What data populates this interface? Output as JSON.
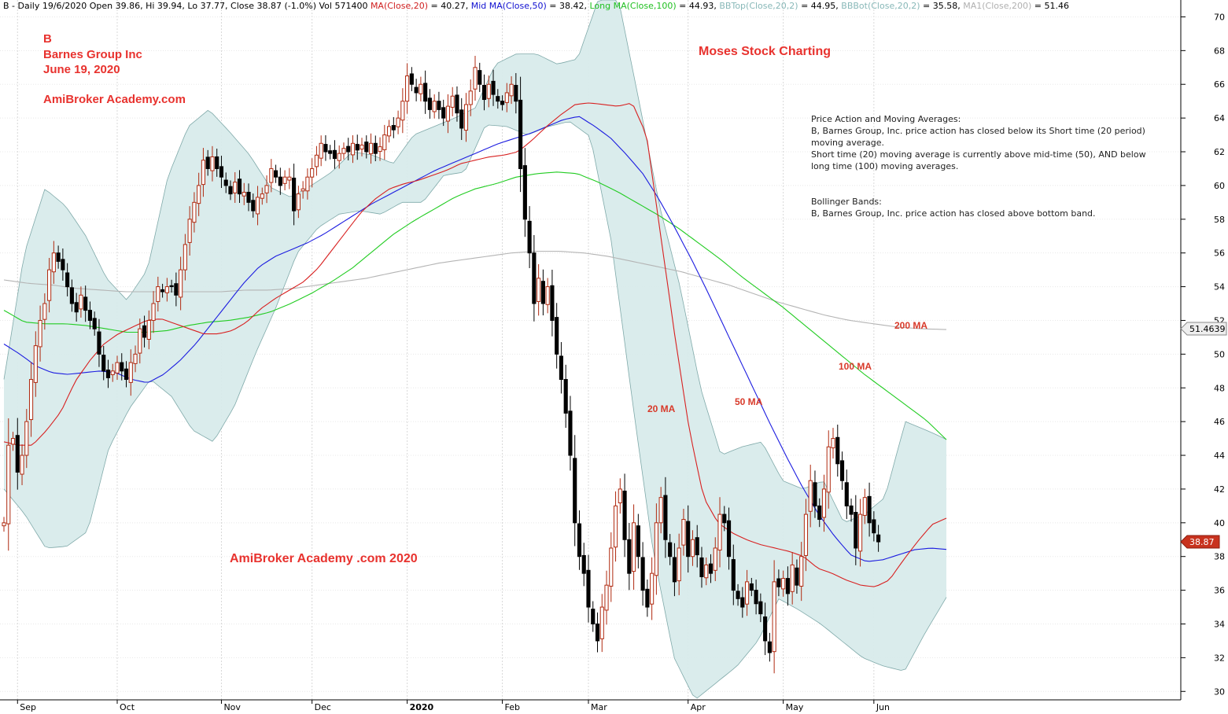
{
  "header": {
    "segments": [
      {
        "text": "B - Daily 19/6/2020 Open 39.86, Hi 39.94, Lo 37.77, Close 38.87 (-1.0%) Vol 571400 ",
        "color": "#000000"
      },
      {
        "text": "MA(Close,20)",
        "color": "#d02020"
      },
      {
        "text": " = 40.27, ",
        "color": "#000000"
      },
      {
        "text": "Mid MA(Close,50)",
        "color": "#1010d0"
      },
      {
        "text": " = 38.42, ",
        "color": "#000000"
      },
      {
        "text": "Long MA(Close,100)",
        "color": "#20c020"
      },
      {
        "text": " = 44.93, ",
        "color": "#000000"
      },
      {
        "text": "BBTop(Close,20,2)",
        "color": "#88b8b8"
      },
      {
        "text": " = 44.95, ",
        "color": "#000000"
      },
      {
        "text": "BBBot(Close,20,2)",
        "color": "#88b8b8"
      },
      {
        "text": " = 35.58, ",
        "color": "#000000"
      },
      {
        "text": "MA1(Close,200)",
        "color": "#b0b0b0"
      },
      {
        "text": " = 51.46",
        "color": "#000000"
      }
    ]
  },
  "titles": {
    "ticker": "B",
    "company": "Barnes Group Inc",
    "date": "June 19, 2020",
    "site": "AmiBroker Academy.com",
    "brand": "Moses Stock Charting",
    "watermark": "AmiBroker Academy .com  2020"
  },
  "notes": {
    "ma_title": "Price Action and Moving Averages:",
    "ma_line1": "B, Barnes Group, Inc. price action has closed below its Short time (20 period)",
    "ma_line2": "moving average.",
    "ma_line3": "Short time (20) moving average is currently above mid-time (50), AND below",
    "ma_line4": "long time (100) moving averages.",
    "bb_title": "Bollinger Bands:",
    "bb_line1": "B, Barnes Group, Inc. price action has closed above bottom band."
  },
  "ma_labels": {
    "ma20": "20 MA",
    "ma50": "50 MA",
    "ma100": "100 MA",
    "ma200": "200 MA"
  },
  "price_badges": {
    "ma200_value": "51.4639",
    "last_close": "38.87"
  },
  "colors": {
    "ma20": "#d82020",
    "ma50": "#1c1ce0",
    "ma100": "#22cc22",
    "ma200": "#b4b4b4",
    "bb_fill": "#d8ebeb",
    "bb_edge": "#7fa9a9",
    "up_candle": "#b02a10",
    "down_candle": "#000000"
  },
  "chart_data": {
    "type": "candlestick",
    "ylim": [
      29.5,
      71
    ],
    "y_ticks": [
      30,
      32,
      34,
      36,
      38,
      40,
      42,
      44,
      46,
      48,
      50,
      52,
      54,
      56,
      58,
      60,
      62,
      64,
      66,
      68,
      70
    ],
    "x_ticks": [
      {
        "label": "Sep",
        "day": 3
      },
      {
        "label": "Oct",
        "day": 25
      },
      {
        "label": "Nov",
        "day": 48
      },
      {
        "label": "Dec",
        "day": 68
      },
      {
        "label": "2020",
        "day": 89
      },
      {
        "label": "Feb",
        "day": 110
      },
      {
        "label": "Mar",
        "day": 129
      },
      {
        "label": "Apr",
        "day": 151
      },
      {
        "label": "May",
        "day": 172
      },
      {
        "label": "Jun",
        "day": 192
      }
    ],
    "n_days": 209,
    "closes": [
      40,
      44.6,
      45,
      43,
      44,
      46,
      48.5,
      50.5,
      52,
      53,
      55,
      56,
      55.5,
      55,
      54,
      53,
      52.5,
      53.5,
      52.6,
      52,
      51.5,
      50,
      49,
      48.6,
      49,
      49.5,
      49,
      48.5,
      49.5,
      50,
      51.5,
      51,
      52,
      53,
      54,
      53.7,
      54,
      54,
      53.5,
      55,
      56.5,
      58,
      59,
      60,
      61.5,
      61,
      61.7,
      61,
      60.5,
      60,
      59.5,
      60.2,
      59.5,
      59.6,
      59,
      58.5,
      59.3,
      59.5,
      60,
      61,
      60.5,
      60,
      60.5,
      60.5,
      58.5,
      59.5,
      59.8,
      60.5,
      61,
      61.8,
      62.5,
      62,
      61.9,
      61.6,
      61.9,
      62.2,
      62,
      62.5,
      62.1,
      62.4,
      62,
      62.5,
      61.9,
      62.3,
      63,
      63.5,
      63.3,
      64,
      65,
      66.5,
      66,
      65.5,
      66,
      65,
      64.5,
      65,
      64.5,
      64,
      64.7,
      65.3,
      64.3,
      63.4,
      64.8,
      65.6,
      67,
      66,
      65.1,
      66,
      65.4,
      65,
      64.8,
      65.5,
      66,
      65,
      61,
      58,
      56,
      53,
      54.5,
      53,
      54,
      52,
      50,
      48.5,
      46.5,
      44,
      40,
      38,
      37,
      35,
      34,
      33,
      35,
      36.3,
      38.5,
      41,
      42,
      39,
      37,
      40,
      38,
      36,
      35,
      37,
      40,
      41.5,
      39,
      38,
      36.5,
      38.5,
      40.2,
      38,
      39,
      38.1,
      36.8,
      37.5,
      37,
      38.5,
      40.5,
      40,
      38,
      36,
      35.5,
      35,
      36.5,
      36,
      35.2,
      34.6,
      33,
      32.3,
      36.5,
      36.2,
      36.7,
      35.8,
      37.5,
      36.3,
      38,
      40.5,
      42.5,
      41,
      40.2,
      42,
      44.5,
      45,
      43.5,
      42.5,
      41,
      40.5,
      38.5,
      40.5,
      41.5,
      40,
      39.4,
      38.87
    ],
    "ma20": [
      44.8,
      44.6,
      44.6,
      45.5,
      46.6,
      48.4,
      49.6,
      50.6,
      51.2,
      51.6,
      52.0,
      52.1,
      51.8,
      51.5,
      51.2,
      51.2,
      51.4,
      51.9,
      52.7,
      53.3,
      53.8,
      54.3,
      55.1,
      56.2,
      57.3,
      58.4,
      59.2,
      59.8,
      60.1,
      60.3,
      60.6,
      60.9,
      61.3,
      61.5,
      61.7,
      61.8,
      62.0,
      62.7,
      63.5,
      64.2,
      64.8,
      64.9,
      64.8,
      64.7,
      64.9,
      63.0,
      57.0,
      51.0,
      45.5,
      41.5,
      40.0,
      39.4,
      39.0,
      38.7,
      38.5,
      38.3,
      38.0,
      37.3,
      37.0,
      36.6,
      36.3,
      36.2,
      36.6,
      37.8,
      38.9,
      39.9,
      40.27
    ],
    "ma50": [
      50.6,
      50.0,
      49.3,
      48.9,
      48.8,
      48.9,
      49.0,
      48.9,
      48.5,
      48.3,
      48.8,
      49.6,
      50.6,
      51.8,
      53.0,
      54.2,
      55.2,
      55.8,
      56.2,
      56.6,
      57.1,
      57.7,
      58.3,
      58.9,
      59.4,
      59.9,
      60.4,
      60.9,
      61.3,
      61.7,
      62.1,
      62.5,
      62.8,
      63.1,
      63.5,
      63.9,
      64.1,
      63.5,
      62.8,
      61.8,
      60.7,
      59.2,
      57.5,
      55.7,
      53.8,
      51.8,
      49.8,
      47.8,
      45.8,
      43.9,
      42.1,
      40.5,
      39.2,
      38.1,
      37.7,
      37.8,
      38.1,
      38.4,
      38.5,
      38.42
    ],
    "ma100": [
      52.6,
      51.9,
      51.8,
      51.8,
      51.7,
      51.5,
      51.3,
      51.3,
      51.4,
      51.7,
      51.9,
      52.0,
      52.2,
      52.5,
      53.0,
      53.6,
      54.3,
      55.1,
      56.1,
      57.1,
      57.9,
      58.6,
      59.3,
      59.8,
      60.1,
      60.5,
      60.7,
      60.8,
      60.7,
      60.2,
      59.6,
      58.9,
      58.2,
      57.4,
      56.5,
      55.6,
      54.6,
      53.7,
      52.8,
      51.8,
      50.8,
      49.8,
      48.8,
      47.9,
      47.0,
      46.1,
      44.93
    ],
    "ma200": [
      54.4,
      54.2,
      54.1,
      53.9,
      53.8,
      53.7,
      53.7,
      53.7,
      53.7,
      53.7,
      53.8,
      53.8,
      53.9,
      54.1,
      54.3,
      54.5,
      54.8,
      55.1,
      55.4,
      55.6,
      55.8,
      56.0,
      56.1,
      56.1,
      56.0,
      55.8,
      55.5,
      55.2,
      54.9,
      54.5,
      54.1,
      53.6,
      53.1,
      52.7,
      52.3,
      52.0,
      51.8,
      51.6,
      51.5,
      51.46
    ],
    "bb_top": [
      48.5,
      56,
      59.8,
      58.8,
      57,
      54.5,
      53.2,
      55,
      60.5,
      63.5,
      64.5,
      63.2,
      61.8,
      59.9,
      59.3,
      60,
      60.8,
      62,
      61.8,
      61.3,
      63,
      63.5,
      64,
      64.6,
      67.2,
      67.8,
      67.8,
      67.2,
      67.5,
      71,
      71,
      65,
      58.8,
      54,
      48,
      44,
      44.5,
      44.8,
      42.5,
      42,
      42.5,
      40,
      40.5,
      41.5,
      46,
      45.5,
      44.95
    ],
    "bb_bot": [
      42,
      40.5,
      38.5,
      38.6,
      39.5,
      44.4,
      46.8,
      48.5,
      47.5,
      45.5,
      44.8,
      46.9,
      50,
      52.8,
      56,
      57.5,
      58.3,
      58.5,
      58.3,
      59,
      59,
      60.6,
      60.8,
      63.6,
      63.5,
      63,
      63.5,
      63.8,
      62.9,
      56.7,
      47.3,
      38.3,
      32,
      29.5,
      30.5,
      31.5,
      33,
      35.5,
      34.8,
      34,
      33,
      32,
      31.5,
      31.2,
      33.5,
      35.58
    ]
  }
}
